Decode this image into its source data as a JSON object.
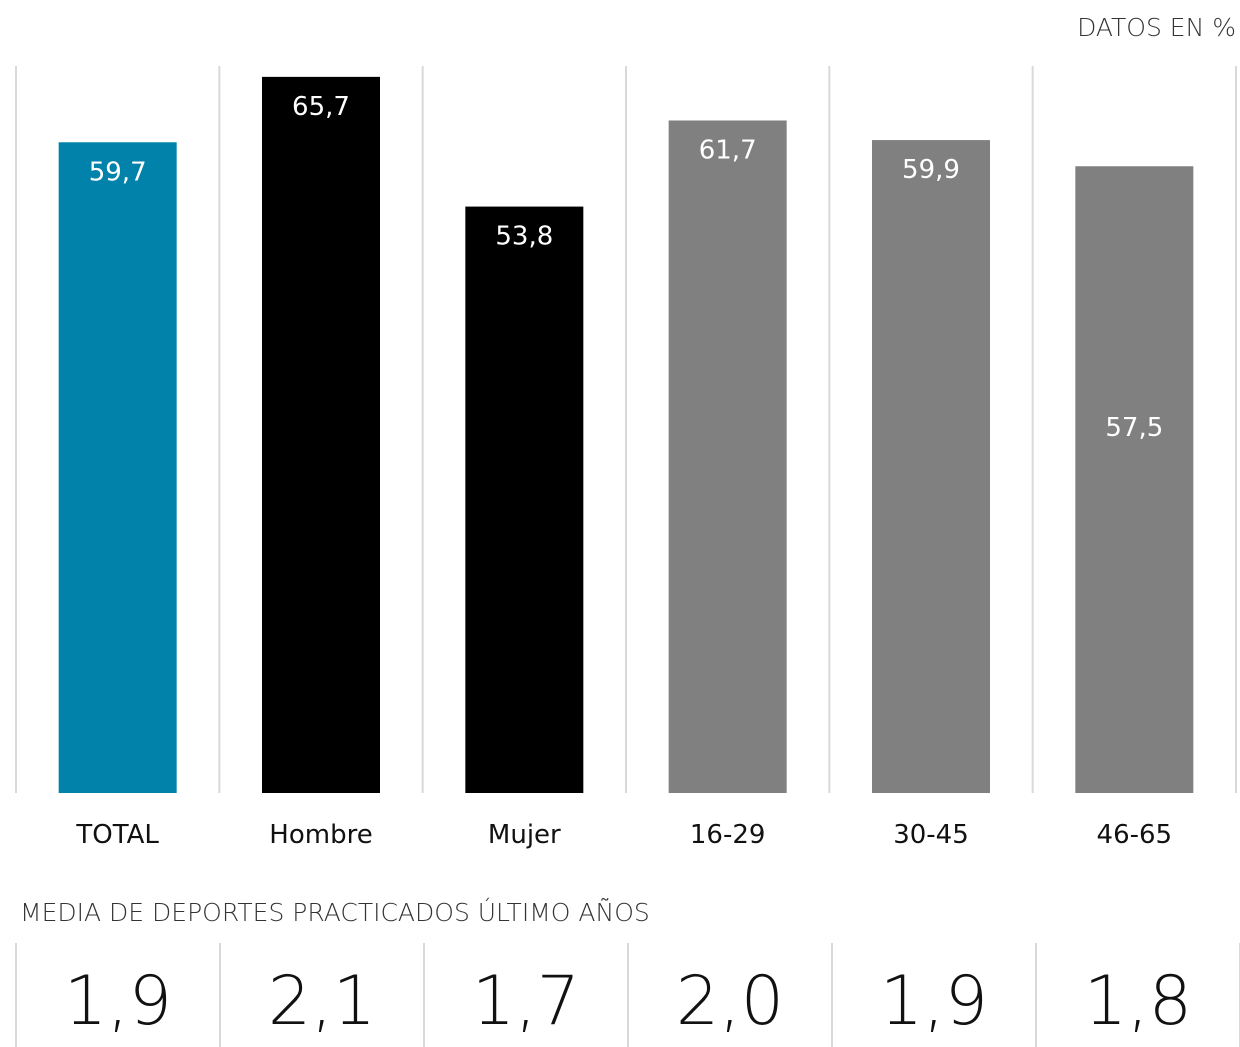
{
  "chart_data": {
    "type": "bar",
    "unit_label": "DATOS EN %",
    "categories": [
      "TOTAL",
      "Hombre",
      "Mujer",
      "16-29",
      "30-45",
      "46-65"
    ],
    "values": [
      59.7,
      65.7,
      53.8,
      61.7,
      59.9,
      57.5
    ],
    "value_labels": [
      "59,7",
      "65,7",
      "53,8",
      "61,7",
      "59,9",
      "57,5"
    ],
    "bar_colors": [
      "#0082aa",
      "#000000",
      "#000000",
      "#808080",
      "#808080",
      "#808080"
    ],
    "ylim": [
      0,
      72
    ],
    "grid": false,
    "legend": "none"
  },
  "averages": {
    "title": "MEDIA DE DEPORTES PRACTICADOS ÚLTIMO AÑOS",
    "values": [
      "1,9",
      "2,1",
      "1,7",
      "2,0",
      "1,9",
      "1,8"
    ],
    "highlight_color": "#0082aa"
  }
}
